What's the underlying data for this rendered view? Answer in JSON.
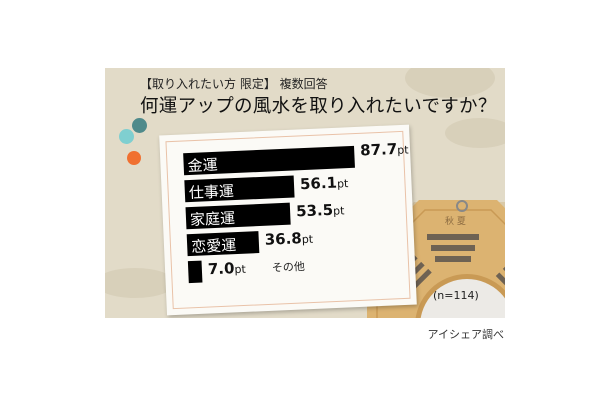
{
  "subtitle": "【取り入れたい方 限定】 複数回答",
  "title": "何運アップの風水を取り入れたいですか？",
  "sample": "(n=114)",
  "credit": "アイシェア調べ",
  "colors": {
    "background": "#e2dbc8",
    "bar": "#000000",
    "dot_teal": "#4f8a8b",
    "dot_cyan": "#7fcfd0",
    "dot_orange": "#f07030",
    "bagua": "#d9b06a"
  },
  "chart_data": {
    "type": "bar",
    "orientation": "horizontal",
    "title": "何運アップの風水を取り入れたいですか？",
    "unit": "pt",
    "categories": [
      "金運",
      "仕事運",
      "家庭運",
      "恋愛運",
      "その他"
    ],
    "values": [
      87.7,
      56.1,
      53.5,
      36.8,
      7.0
    ],
    "value_labels": [
      "87.7",
      "56.1",
      "53.5",
      "36.8",
      "7.0"
    ],
    "grid": false
  }
}
